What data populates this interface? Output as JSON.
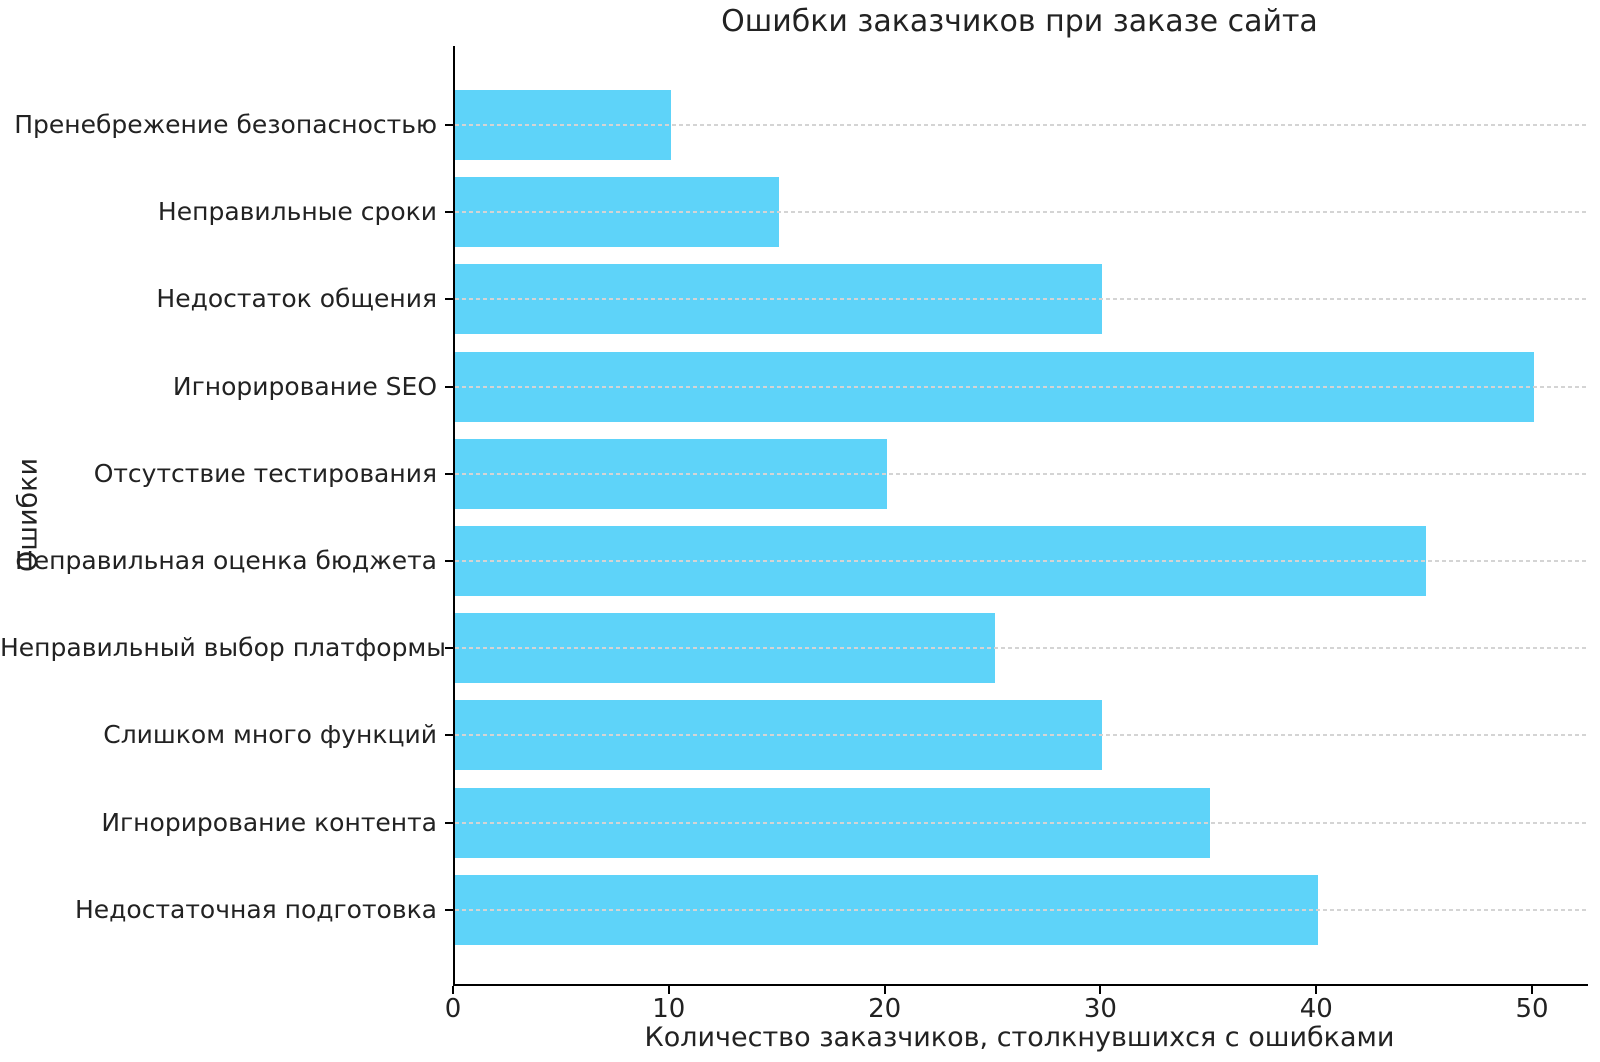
{
  "chart_data": {
    "type": "bar",
    "orientation": "horizontal",
    "title": "Ошибки заказчиков при заказе сайта",
    "xlabel": "Количество заказчиков, столкнувшихся с ошибками",
    "ylabel": "Ошибки",
    "categories": [
      "Пренебрежение безопасностью",
      "Неправильные сроки",
      "Недостаток общения",
      "Игнорирование SEO",
      "Отсутствие тестирования",
      "Неправильная оценка бюджета",
      "Неправильный выбор платформы",
      "Слишком много функций",
      "Игнорирование контента",
      "Недостаточная подготовка"
    ],
    "values": [
      10,
      15,
      30,
      50,
      20,
      45,
      25,
      30,
      35,
      40
    ],
    "x_ticks": [
      "0",
      "10",
      "20",
      "30",
      "40",
      "50"
    ],
    "x_tick_values": [
      0,
      10,
      20,
      30,
      40,
      50
    ],
    "xlim": [
      0,
      52.5
    ],
    "grid": "horizontal-dashed",
    "legend": "none",
    "colors": {
      "bar_fill": "#5ed3f9",
      "gridline": "#d4d4d4",
      "spine": "#000000",
      "text": "#222222",
      "background": "#ffffff"
    }
  }
}
